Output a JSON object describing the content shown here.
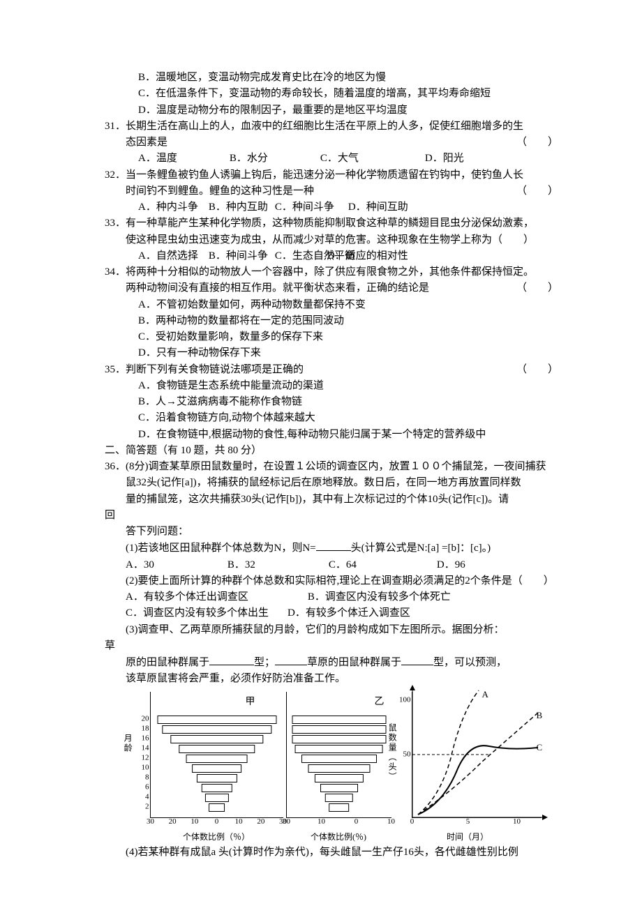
{
  "q30": {
    "B": "B．温暖地区，变温动物完成发育史比在冷的地区为慢",
    "C": "C．在低温条件下，变温动物的寿命较长，随着温度的增高，其平均寿命缩短",
    "D": "D．温度是动物分布的限制因子，最重要的是地区平均温度"
  },
  "q31": {
    "num": "31．",
    "stem": "长期生活在高山上的人，血液中的红细胞比生活在平原上的人多，促使红细胞增多的生",
    "stem2": "态因素是",
    "paren": "（　　）",
    "A": "A．温度",
    "B": "B．水分",
    "C": "C．大气",
    "D": "D．阳光",
    "gapA": 135,
    "gapB": 135,
    "gapC": 155
  },
  "q32": {
    "num": "32．",
    "stem": "当一条鲤鱼被钓鱼人诱骗上钩后，能迅速分泌一种化学物质遗留在钓钩中，使钓鱼人长",
    "stem2": "时间钓不到鲤鱼。鲤鱼的这种习性是一种",
    "paren": "（　　）",
    "A": "A．种内斗争",
    "B": "B．种内互助",
    "C": "C．种间斗争",
    "D": "D．种间互助",
    "gapA": 105,
    "gapB": 100,
    "gapC": 110
  },
  "q33": {
    "num": "33．",
    "stem": "有一种草能产生某种化学物质，这种物质能抑制取食这种草的鳞翅目昆虫分泌保幼激素，",
    "stem2": "使这种昆虫幼虫迅速变为成虫，从而减少对草的危害。这种现象在生物学上称为（　　）",
    "A": "A．自然选择",
    "B": "B．种间斗争",
    "C": "C．生态自然平衡",
    "D": "D．适应的相对性",
    "gapA": 105,
    "gapB": 100,
    "gapC": 80
  },
  "q34": {
    "num": "34．",
    "stem": "将两种十分相似的动物放人一个容器中，除了供应有限食物之外，其他条件都保持恒定。",
    "stem2": "两种动物间没有直接的相互作用。就平衡状态来看，正确的结论是",
    "paren": "（　　）",
    "A": "A．不管初始数量如何，两种动物数量都保持不变",
    "B": "B．两种动物的数量都将在一定的范围同波动",
    "C": "C．受初始数量影响，数量多的保存下来",
    "D": "D．只有一种动物保存下来"
  },
  "q35": {
    "num": "35．",
    "stem": "判断下列有关食物链说法哪项是正确的",
    "paren": "（　　）",
    "A": "A．食物链是生态系统中能量流动的渠道",
    "B": "B．人→艾滋病病毒不能称作食物链",
    "C": "C．沿着食物链方向,动物个体越来越大",
    "D": "D．在食物链中,根据动物的食性,每种动物只能归属于某一个特定的营养级中"
  },
  "section2": "二、简答题（有 10 题，共 80 分）",
  "q36": {
    "num": "36．",
    "header": "(8分)调查某草原田鼠数量时，在设置１公顷的调查区内，放置１００个捕鼠笼，一夜间捕获",
    "header2": "鼠32头(记作[a])，将捕获的鼠经标记后在原地释放。数日后，在同一地方再放置同样数",
    "header3": "量的捕鼠笼，这次共捕获30头(记作[b])，其中有上次标记过的个体10头(记作[c])。请",
    "header_hui": "回",
    "header4": "答下列问题：",
    "p1a": "(1)若该地区田鼠种群个体总数为N，则N=",
    "p1b": "头(计算公式是N:[a] =[b]：[c]。)",
    "p1A": "A．30",
    "p1B": "B．32",
    "p1C": "C．64",
    "p1D": "D．96",
    "gap1A": 150,
    "gap1B": 150,
    "gap1C": 160,
    "p2": "(2)要使上面所计算的种群个体总数和实际相符,理论上在调查期必须满足的2个条件是（　　）",
    "p2A": "A．有较多个体迁出调查区",
    "p2B": "B．调查区内没有较多个体死亡",
    "p2C": "C．调查区内没有较多个体出生",
    "p2D": "D．有较多个体迁入调查区",
    "gap2A": 280,
    "gap2C": 252,
    "p3": "(3)调查甲、乙两草原所捕获鼠的月龄，它们的月龄构成如下左图所示。据图分析：",
    "p3_cao": "草",
    "p3_2a": "原的田鼠种群属于",
    "p3_2b": "型；",
    "p3_2c": "草原的田鼠种群属于",
    "p3_2d": "型，可以预测，",
    "p3_3": "该草原鼠害将会严重，必须作好防治准备工作。",
    "p4": "(4)若某种群有成鼠a 头(计算时作为亲代)，每头雌鼠一生产仔16头，各代雌雄性别比例"
  },
  "chart_jia": {
    "label": "甲",
    "yticks": [
      2,
      4,
      6,
      8,
      10,
      12,
      14,
      16,
      18,
      20
    ],
    "xticks": [
      30,
      20,
      10,
      0,
      10,
      20,
      30
    ],
    "xlabel": "个体数比例（％）",
    "ylabel": "月龄",
    "bar_widths_pct": [
      14,
      20,
      26,
      34,
      42,
      52,
      64,
      78,
      92,
      100
    ],
    "bar_color": "#ffffff",
    "border_color": "#000000"
  },
  "chart_yi": {
    "label": "乙",
    "xticks": [
      30,
      10,
      0,
      10
    ],
    "xlabel": "个体数比例(％)",
    "bar_widths_pct": [
      22,
      30,
      40,
      52,
      66,
      80,
      94,
      100,
      100,
      100
    ]
  },
  "chart_growth": {
    "yticks": [
      50,
      100
    ],
    "xticks": [
      0,
      5,
      10
    ],
    "xlabel": "时间（月）",
    "ylabel": "鼠数量（头）",
    "labels": [
      "A",
      "B",
      "C"
    ]
  }
}
